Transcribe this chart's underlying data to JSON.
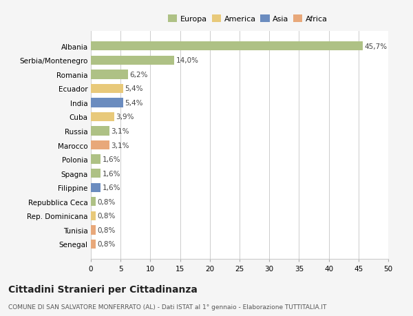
{
  "countries": [
    "Albania",
    "Serbia/Montenegro",
    "Romania",
    "Ecuador",
    "India",
    "Cuba",
    "Russia",
    "Marocco",
    "Polonia",
    "Spagna",
    "Filippine",
    "Repubblica Ceca",
    "Rep. Dominicana",
    "Tunisia",
    "Senegal"
  ],
  "values": [
    45.7,
    14.0,
    6.2,
    5.4,
    5.4,
    3.9,
    3.1,
    3.1,
    1.6,
    1.6,
    1.6,
    0.8,
    0.8,
    0.8,
    0.8
  ],
  "labels": [
    "45,7%",
    "14,0%",
    "6,2%",
    "5,4%",
    "5,4%",
    "3,9%",
    "3,1%",
    "3,1%",
    "1,6%",
    "1,6%",
    "1,6%",
    "0,8%",
    "0,8%",
    "0,8%",
    "0,8%"
  ],
  "colors": [
    "#aec185",
    "#aec185",
    "#aec185",
    "#e8c97a",
    "#6b8cbf",
    "#e8c97a",
    "#aec185",
    "#e8a87a",
    "#aec185",
    "#aec185",
    "#6b8cbf",
    "#aec185",
    "#e8c97a",
    "#e8a87a",
    "#e8a87a"
  ],
  "legend_labels": [
    "Europa",
    "America",
    "Asia",
    "Africa"
  ],
  "legend_colors": [
    "#aec185",
    "#e8c97a",
    "#6b8cbf",
    "#e8a87a"
  ],
  "xlim": [
    0,
    50
  ],
  "xticks": [
    0,
    5,
    10,
    15,
    20,
    25,
    30,
    35,
    40,
    45,
    50
  ],
  "title": "Cittadini Stranieri per Cittadinanza",
  "subtitle": "COMUNE DI SAN SALVATORE MONFERRATO (AL) - Dati ISTAT al 1° gennaio - Elaborazione TUTTITALIA.IT",
  "bg_color": "#f5f5f5",
  "plot_bg_color": "#ffffff",
  "grid_color": "#cccccc",
  "bar_label_fontsize": 7.5,
  "axis_fontsize": 7.5,
  "title_fontsize": 10,
  "subtitle_fontsize": 6.5,
  "legend_fontsize": 8
}
